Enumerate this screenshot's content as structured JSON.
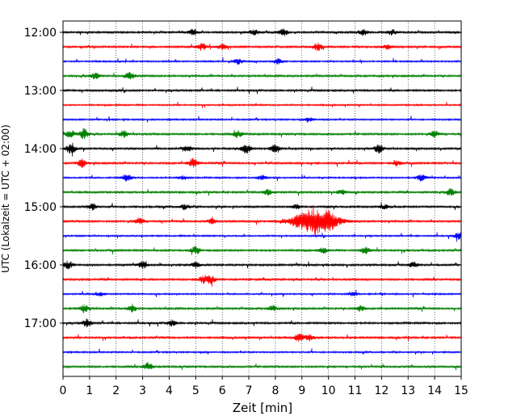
{
  "chart_data": {
    "type": "line",
    "xlabel": "Zeit  [min]",
    "ylabel": "UTC (Lokalzeit = UTC + 02:00)",
    "xlim": [
      0,
      15
    ],
    "x_ticks": [
      0,
      1,
      2,
      3,
      4,
      5,
      6,
      7,
      8,
      9,
      10,
      11,
      12,
      13,
      14,
      15
    ],
    "x_grid": "dotted vertical lines at each minute",
    "hour_labels": [
      "12:00",
      "13:00",
      "14:00",
      "15:00",
      "16:00",
      "17:00"
    ],
    "trace_interval_min": 15,
    "trace_start_times": [
      "12:00",
      "12:15",
      "12:30",
      "12:45",
      "13:00",
      "13:15",
      "13:30",
      "13:45",
      "14:00",
      "14:15",
      "14:30",
      "14:45",
      "15:00",
      "15:15",
      "15:30",
      "15:45",
      "16:00",
      "16:15",
      "16:30",
      "16:45",
      "17:00",
      "17:15",
      "17:30",
      "17:45"
    ],
    "colors": [
      "#000000",
      "#ff0000",
      "#0000ff",
      "#008000"
    ],
    "bursts": [
      {
        "trace": 0,
        "events": [
          [
            4.9,
            0.5
          ],
          [
            7.2,
            0.45
          ],
          [
            8.3,
            0.5
          ],
          [
            11.3,
            0.5
          ],
          [
            12.4,
            0.4
          ]
        ]
      },
      {
        "trace": 1,
        "events": [
          [
            5.2,
            0.5
          ],
          [
            6.0,
            0.4
          ],
          [
            9.6,
            0.55
          ],
          [
            12.2,
            0.35
          ]
        ]
      },
      {
        "trace": 2,
        "events": [
          [
            6.6,
            0.4
          ],
          [
            8.1,
            0.4
          ]
        ]
      },
      {
        "trace": 3,
        "events": [
          [
            1.2,
            0.45
          ],
          [
            2.5,
            0.55
          ]
        ]
      },
      {
        "trace": 5,
        "events": []
      },
      {
        "trace": 6,
        "events": [
          [
            9.3,
            0.3
          ]
        ]
      },
      {
        "trace": 7,
        "events": [
          [
            0.3,
            0.55
          ],
          [
            0.8,
            0.8
          ],
          [
            2.3,
            0.5
          ],
          [
            6.6,
            0.55
          ],
          [
            14.0,
            0.5
          ]
        ]
      },
      {
        "trace": 8,
        "events": [
          [
            0.3,
            0.9
          ],
          [
            4.7,
            0.45
          ],
          [
            6.9,
            0.7
          ],
          [
            8.0,
            0.8
          ],
          [
            11.9,
            0.6
          ]
        ]
      },
      {
        "trace": 9,
        "events": [
          [
            0.7,
            0.6
          ],
          [
            4.9,
            0.7
          ],
          [
            12.6,
            0.4
          ]
        ]
      },
      {
        "trace": 10,
        "events": [
          [
            2.4,
            0.55
          ],
          [
            4.5,
            0.35
          ],
          [
            7.5,
            0.35
          ],
          [
            13.5,
            0.55
          ]
        ]
      },
      {
        "trace": 11,
        "events": [
          [
            7.7,
            0.4
          ],
          [
            10.5,
            0.35
          ],
          [
            14.6,
            0.55
          ]
        ]
      },
      {
        "trace": 12,
        "events": [
          [
            1.1,
            0.5
          ],
          [
            4.6,
            0.4
          ],
          [
            8.8,
            0.35
          ],
          [
            12.1,
            0.3
          ]
        ]
      },
      {
        "trace": 13,
        "events": [
          [
            2.9,
            0.55
          ],
          [
            5.6,
            0.4
          ],
          [
            9.5,
            2.0
          ],
          [
            10.0,
            0.5
          ]
        ]
      },
      {
        "trace": 14,
        "events": [
          [
            14.9,
            0.5
          ]
        ]
      },
      {
        "trace": 15,
        "events": [
          [
            5.0,
            0.6
          ],
          [
            9.8,
            0.4
          ],
          [
            11.4,
            0.5
          ]
        ]
      },
      {
        "trace": 16,
        "events": [
          [
            0.2,
            0.6
          ],
          [
            3.0,
            0.55
          ],
          [
            5.0,
            0.45
          ],
          [
            13.2,
            0.4
          ]
        ]
      },
      {
        "trace": 17,
        "events": [
          [
            5.3,
            0.65
          ],
          [
            5.6,
            0.55
          ]
        ]
      },
      {
        "trace": 18,
        "events": [
          [
            1.4,
            0.3
          ],
          [
            10.9,
            0.3
          ]
        ]
      },
      {
        "trace": 19,
        "events": [
          [
            0.8,
            0.6
          ],
          [
            2.6,
            0.5
          ],
          [
            7.9,
            0.45
          ],
          [
            11.2,
            0.45
          ]
        ]
      },
      {
        "trace": 20,
        "events": [
          [
            0.9,
            0.55
          ],
          [
            4.1,
            0.45
          ]
        ]
      },
      {
        "trace": 21,
        "events": [
          [
            8.9,
            0.65
          ],
          [
            9.3,
            0.45
          ]
        ]
      },
      {
        "trace": 22,
        "events": []
      },
      {
        "trace": 23,
        "events": [
          [
            3.2,
            0.6
          ]
        ]
      }
    ]
  }
}
